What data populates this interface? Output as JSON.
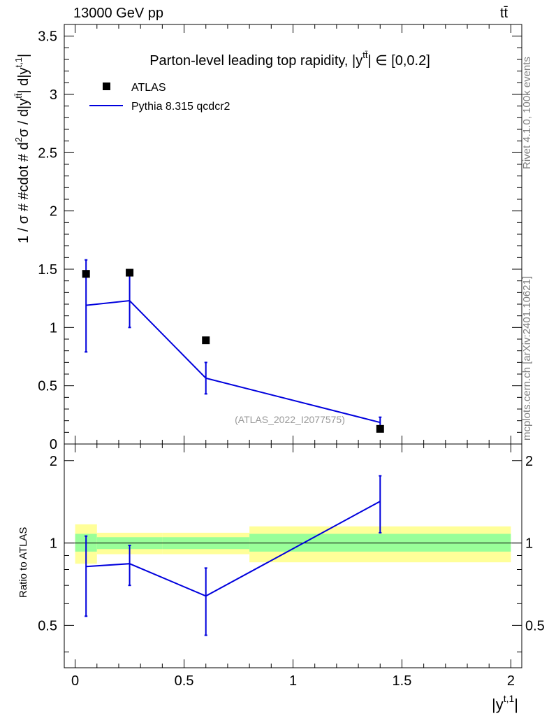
{
  "header": {
    "left": "13000 GeV pp",
    "right": "tt̄"
  },
  "side_notes": {
    "rivet": "Rivet 4.1.0,  100k events",
    "mcplots": "mcplots.cern.ch [arXiv:2401.10621]"
  },
  "chart_data": {
    "type": "line",
    "title": "Parton-level leading top rapidity, |y^{tt̄}| ∈ [0,0.2]",
    "title_text": "Parton-level leading top rapidity, |y",
    "title_sup": "tt̄",
    "title_tail": "| ∈ [0,0.2]",
    "watermark": "(ATLAS_2022_I2077575)",
    "xlabel": "|y^{t,1}|",
    "xlabel_base": "|y",
    "xlabel_sup": "t,1",
    "xlabel_tail": "|",
    "ylabel": "1 / σ # #cdot # d²σ / d|y^{tt̄}| d|y^{t,1}|",
    "ylabel_parts": {
      "p1": "1 / σ # #cdot # d",
      "sup1": "2",
      "p2": "σ / d|y",
      "sup2": "tt̄",
      "p3": "| d|y",
      "sup3": "t,1",
      "p4": "|"
    },
    "ratio_ylabel": "Ratio to ATLAS",
    "xlim": [
      -0.05,
      2.05
    ],
    "ylim_main": [
      0,
      3.6
    ],
    "ylim_ratio": [
      0.35,
      2.3
    ],
    "ratio_log": true,
    "x_ticks": [
      "0",
      "0.5",
      "1",
      "1.5",
      "2"
    ],
    "x_tick_values": [
      0,
      0.5,
      1,
      1.5,
      2
    ],
    "main_y_ticks": [
      "0",
      "0.5",
      "1",
      "1.5",
      "2",
      "2.5",
      "3",
      "3.5"
    ],
    "main_y_tick_values": [
      0,
      0.5,
      1,
      1.5,
      2,
      2.5,
      3,
      3.5
    ],
    "ratio_y_ticks": [
      "0.5",
      "1",
      "2"
    ],
    "ratio_y_tick_values": [
      0.5,
      1,
      2
    ],
    "legend": [
      {
        "label": "ATLAS",
        "marker": "square",
        "color": "#000000"
      },
      {
        "label": "Pythia 8.315 qcdcr2",
        "marker": "line",
        "color": "#0000dd"
      }
    ],
    "legend_position": "top-left",
    "bin_edges": [
      0,
      0.1,
      0.4,
      0.8,
      2.0
    ],
    "series": [
      {
        "name": "ATLAS",
        "color": "#000000",
        "x": [
          0.05,
          0.25,
          0.6,
          1.4
        ],
        "y": [
          1.46,
          1.47,
          0.89,
          0.13
        ]
      },
      {
        "name": "Pythia 8.315 qcdcr2",
        "color": "#0000dd",
        "x": [
          0.05,
          0.25,
          0.6,
          1.4
        ],
        "y": [
          1.19,
          1.23,
          0.565,
          0.185
        ],
        "err_low": [
          0.4,
          0.23,
          0.135,
          0.045
        ],
        "err_high": [
          0.39,
          0.23,
          0.135,
          0.045
        ]
      }
    ],
    "ratio": {
      "x": [
        0.05,
        0.25,
        0.6,
        1.4
      ],
      "y": [
        0.82,
        0.84,
        0.64,
        1.42
      ],
      "err_low": [
        0.28,
        0.14,
        0.18,
        0.33
      ],
      "err_high": [
        0.24,
        0.14,
        0.17,
        0.34
      ],
      "band_inner": [
        [
          0.93,
          1.08
        ],
        [
          0.95,
          1.05
        ],
        [
          0.95,
          1.05
        ],
        [
          0.93,
          1.08
        ]
      ],
      "band_outer": [
        [
          0.84,
          1.17
        ],
        [
          0.91,
          1.09
        ],
        [
          0.91,
          1.09
        ],
        [
          0.85,
          1.15
        ]
      ]
    },
    "colors": {
      "mc": "#0000dd",
      "data": "#000000",
      "band_inner": "#99ff99",
      "band_outer": "#ffff99"
    }
  }
}
